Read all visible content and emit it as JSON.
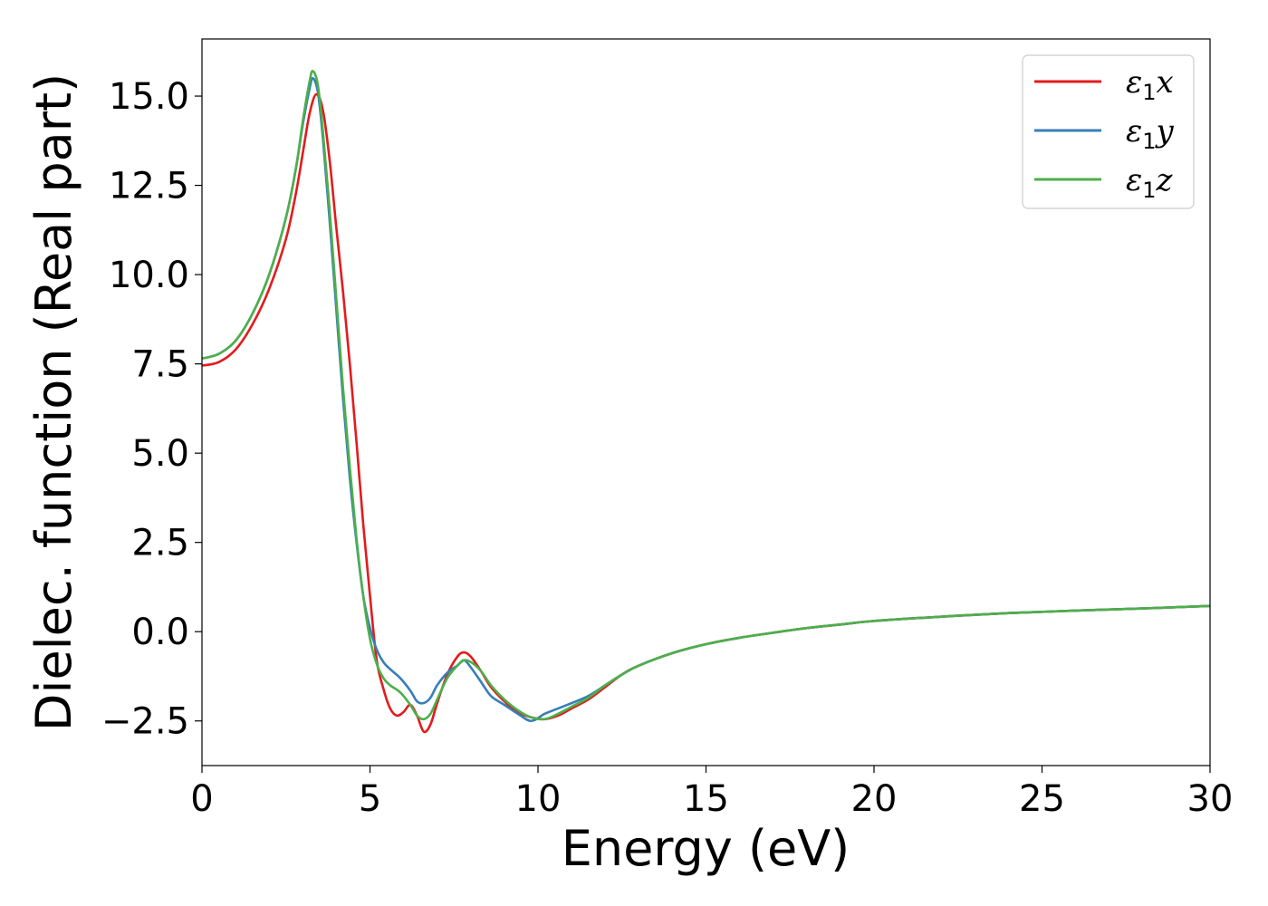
{
  "chart_data": {
    "type": "line",
    "title": "",
    "xlabel": "Energy (eV)",
    "ylabel": "Dielec. function (Real part)",
    "xlim": [
      0,
      30
    ],
    "ylim": [
      -3.75,
      16.6
    ],
    "xticks": [
      0,
      5,
      10,
      15,
      20,
      25,
      30
    ],
    "xtick_labels": [
      "0",
      "5",
      "10",
      "15",
      "20",
      "25",
      "30"
    ],
    "yticks": [
      -2.5,
      0.0,
      2.5,
      5.0,
      7.5,
      10.0,
      12.5,
      15.0
    ],
    "ytick_labels": [
      "−2.5",
      "0.0",
      "2.5",
      "5.0",
      "7.5",
      "10.0",
      "12.5",
      "15.0"
    ],
    "grid": false,
    "legend": "top-right",
    "series": [
      {
        "name": "ε1x",
        "legend_parts": {
          "symbol": "ε",
          "sub": "1",
          "var": "x"
        },
        "color": "#e41a1c",
        "points": [
          [
            0,
            7.45
          ],
          [
            0.5,
            7.55
          ],
          [
            1,
            7.9
          ],
          [
            1.5,
            8.6
          ],
          [
            2,
            9.6
          ],
          [
            2.5,
            11.0
          ],
          [
            2.8,
            12.3
          ],
          [
            3.0,
            13.4
          ],
          [
            3.2,
            14.5
          ],
          [
            3.4,
            15.05
          ],
          [
            3.6,
            14.6
          ],
          [
            3.8,
            13.2
          ],
          [
            4.0,
            11.3
          ],
          [
            4.2,
            9.5
          ],
          [
            4.4,
            7.5
          ],
          [
            4.6,
            5.3
          ],
          [
            4.8,
            3.0
          ],
          [
            5.0,
            1.0
          ],
          [
            5.2,
            -0.8
          ],
          [
            5.4,
            -1.6
          ],
          [
            5.6,
            -2.15
          ],
          [
            5.8,
            -2.35
          ],
          [
            6.0,
            -2.25
          ],
          [
            6.2,
            -2.05
          ],
          [
            6.4,
            -2.35
          ],
          [
            6.6,
            -2.8
          ],
          [
            6.8,
            -2.6
          ],
          [
            7.0,
            -2.0
          ],
          [
            7.3,
            -1.2
          ],
          [
            7.6,
            -0.7
          ],
          [
            7.8,
            -0.58
          ],
          [
            8.0,
            -0.7
          ],
          [
            8.3,
            -1.1
          ],
          [
            8.6,
            -1.55
          ],
          [
            9.0,
            -1.95
          ],
          [
            9.4,
            -2.25
          ],
          [
            9.8,
            -2.4
          ],
          [
            10.2,
            -2.45
          ],
          [
            10.6,
            -2.35
          ],
          [
            11.0,
            -2.15
          ],
          [
            11.5,
            -1.9
          ],
          [
            12,
            -1.55
          ],
          [
            12.5,
            -1.2
          ],
          [
            13,
            -0.95
          ],
          [
            14,
            -0.6
          ],
          [
            15,
            -0.35
          ],
          [
            16,
            -0.17
          ],
          [
            17,
            -0.03
          ],
          [
            18,
            0.1
          ],
          [
            19,
            0.2
          ],
          [
            20,
            0.3
          ],
          [
            22,
            0.42
          ],
          [
            24,
            0.52
          ],
          [
            26,
            0.59
          ],
          [
            28,
            0.65
          ],
          [
            30,
            0.72
          ]
        ]
      },
      {
        "name": "ε1y",
        "legend_parts": {
          "symbol": "ε",
          "sub": "1",
          "var": "y"
        },
        "color": "#377eb8",
        "points": [
          [
            0,
            7.65
          ],
          [
            0.5,
            7.78
          ],
          [
            1,
            8.15
          ],
          [
            1.5,
            8.9
          ],
          [
            2,
            10.0
          ],
          [
            2.5,
            11.6
          ],
          [
            2.8,
            13.0
          ],
          [
            3.0,
            14.2
          ],
          [
            3.2,
            15.2
          ],
          [
            3.3,
            15.5
          ],
          [
            3.45,
            15.1
          ],
          [
            3.6,
            13.8
          ],
          [
            3.8,
            11.5
          ],
          [
            4.0,
            9.0
          ],
          [
            4.2,
            6.5
          ],
          [
            4.4,
            4.3
          ],
          [
            4.6,
            2.5
          ],
          [
            4.8,
            1.0
          ],
          [
            5.0,
            0.1
          ],
          [
            5.2,
            -0.5
          ],
          [
            5.4,
            -0.85
          ],
          [
            5.6,
            -1.05
          ],
          [
            5.9,
            -1.3
          ],
          [
            6.2,
            -1.65
          ],
          [
            6.4,
            -1.95
          ],
          [
            6.6,
            -2.0
          ],
          [
            6.8,
            -1.85
          ],
          [
            7.0,
            -1.5
          ],
          [
            7.3,
            -1.15
          ],
          [
            7.6,
            -0.95
          ],
          [
            7.8,
            -0.8
          ],
          [
            8.0,
            -1.0
          ],
          [
            8.3,
            -1.4
          ],
          [
            8.6,
            -1.8
          ],
          [
            9.0,
            -2.05
          ],
          [
            9.4,
            -2.3
          ],
          [
            9.8,
            -2.5
          ],
          [
            10.2,
            -2.3
          ],
          [
            10.6,
            -2.15
          ],
          [
            11,
            -2.0
          ],
          [
            11.5,
            -1.8
          ],
          [
            12,
            -1.5
          ],
          [
            12.5,
            -1.2
          ],
          [
            13,
            -0.95
          ],
          [
            14,
            -0.6
          ],
          [
            15,
            -0.35
          ],
          [
            16,
            -0.17
          ],
          [
            17,
            -0.03
          ],
          [
            18,
            0.1
          ],
          [
            19,
            0.2
          ],
          [
            20,
            0.3
          ],
          [
            22,
            0.42
          ],
          [
            24,
            0.52
          ],
          [
            26,
            0.59
          ],
          [
            28,
            0.65
          ],
          [
            30,
            0.72
          ]
        ]
      },
      {
        "name": "ε1z",
        "legend_parts": {
          "symbol": "ε",
          "sub": "1",
          "var": "z"
        },
        "color": "#4daf4a",
        "points": [
          [
            0,
            7.65
          ],
          [
            0.5,
            7.78
          ],
          [
            1,
            8.15
          ],
          [
            1.5,
            8.9
          ],
          [
            2,
            10.0
          ],
          [
            2.5,
            11.6
          ],
          [
            2.8,
            13.0
          ],
          [
            3.0,
            14.3
          ],
          [
            3.2,
            15.4
          ],
          [
            3.3,
            15.7
          ],
          [
            3.45,
            15.3
          ],
          [
            3.6,
            14.0
          ],
          [
            3.8,
            11.8
          ],
          [
            4.0,
            9.3
          ],
          [
            4.2,
            6.8
          ],
          [
            4.4,
            4.6
          ],
          [
            4.6,
            2.6
          ],
          [
            4.8,
            1.0
          ],
          [
            5.0,
            -0.2
          ],
          [
            5.2,
            -0.9
          ],
          [
            5.4,
            -1.3
          ],
          [
            5.6,
            -1.5
          ],
          [
            5.9,
            -1.7
          ],
          [
            6.2,
            -2.05
          ],
          [
            6.4,
            -2.35
          ],
          [
            6.6,
            -2.45
          ],
          [
            6.8,
            -2.3
          ],
          [
            7.0,
            -1.9
          ],
          [
            7.3,
            -1.3
          ],
          [
            7.6,
            -0.95
          ],
          [
            7.8,
            -0.8
          ],
          [
            8.0,
            -0.85
          ],
          [
            8.3,
            -1.1
          ],
          [
            8.6,
            -1.5
          ],
          [
            9.0,
            -1.9
          ],
          [
            9.4,
            -2.2
          ],
          [
            9.8,
            -2.4
          ],
          [
            10.2,
            -2.45
          ],
          [
            10.6,
            -2.3
          ],
          [
            11,
            -2.1
          ],
          [
            11.5,
            -1.85
          ],
          [
            12,
            -1.5
          ],
          [
            12.5,
            -1.2
          ],
          [
            13,
            -0.95
          ],
          [
            14,
            -0.6
          ],
          [
            15,
            -0.35
          ],
          [
            16,
            -0.17
          ],
          [
            17,
            -0.03
          ],
          [
            18,
            0.1
          ],
          [
            19,
            0.2
          ],
          [
            20,
            0.3
          ],
          [
            22,
            0.42
          ],
          [
            24,
            0.52
          ],
          [
            26,
            0.59
          ],
          [
            28,
            0.65
          ],
          [
            30,
            0.72
          ]
        ]
      }
    ]
  }
}
